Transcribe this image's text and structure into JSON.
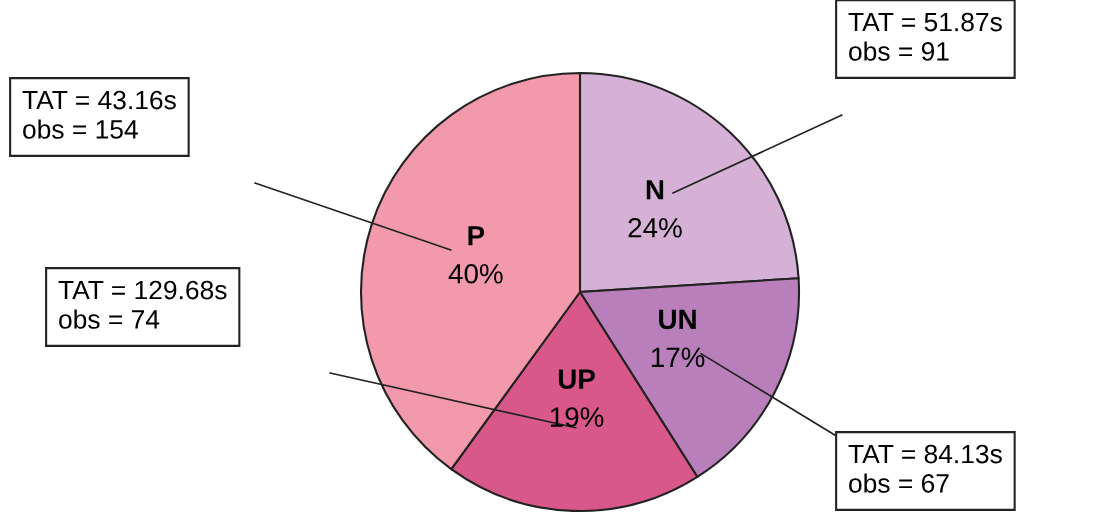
{
  "chart_data": {
    "type": "pie",
    "categories": [
      "N",
      "UN",
      "UP",
      "P"
    ],
    "values": [
      24,
      17,
      19,
      40
    ],
    "value_labels": [
      "24%",
      "17%",
      "19%",
      "40%"
    ],
    "colors": [
      "#d5b1d6",
      "#b87fbb",
      "#d9588a",
      "#f29aac"
    ],
    "annotations": [
      "TAT = 51.87s\nobs = 91",
      "TAT = 84.13s\nobs = 67",
      "TAT = 129.68s\nobs = 74",
      "TAT = 43.16s\nobs = 154"
    ]
  }
}
